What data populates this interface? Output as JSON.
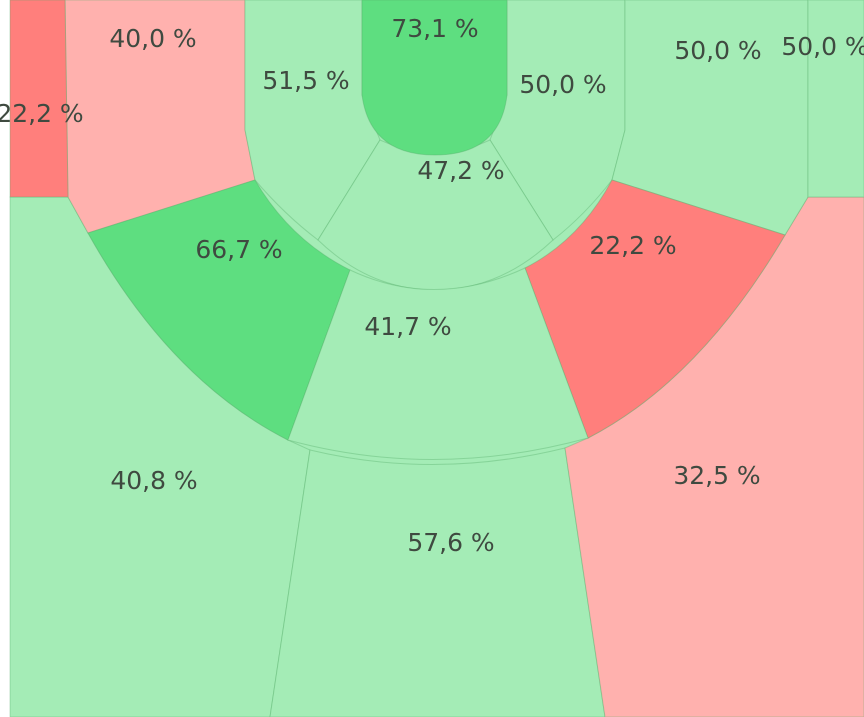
{
  "chart_data": {
    "type": "zones",
    "values": [
      73.1,
      40.0,
      22.2,
      51.5,
      50.0,
      50.0,
      50.0,
      47.2,
      66.7,
      22.2,
      41.7,
      40.8,
      57.6,
      32.5
    ],
    "value_labels": [
      "73,1 %",
      "40,0 %",
      "22,2 %",
      "51,5 %",
      "50,0 %",
      "50,0 %",
      "50,0 %",
      "47,2 %",
      "66,7 %",
      "22,2 %",
      "41,7 %",
      "40,8 %",
      "57,6 %",
      "32,5 %"
    ],
    "colors": [
      "#5ede80",
      "#ffb1ae",
      "#ff7f7c",
      "#a4ecb6",
      "#a4ecb6",
      "#a4ecb6",
      "#a4ecb6",
      "#a4ecb6",
      "#5ede80",
      "#ff7f7c",
      "#a4ecb6",
      "#a4ecb6",
      "#a4ecb6",
      "#ffb1ae"
    ]
  }
}
